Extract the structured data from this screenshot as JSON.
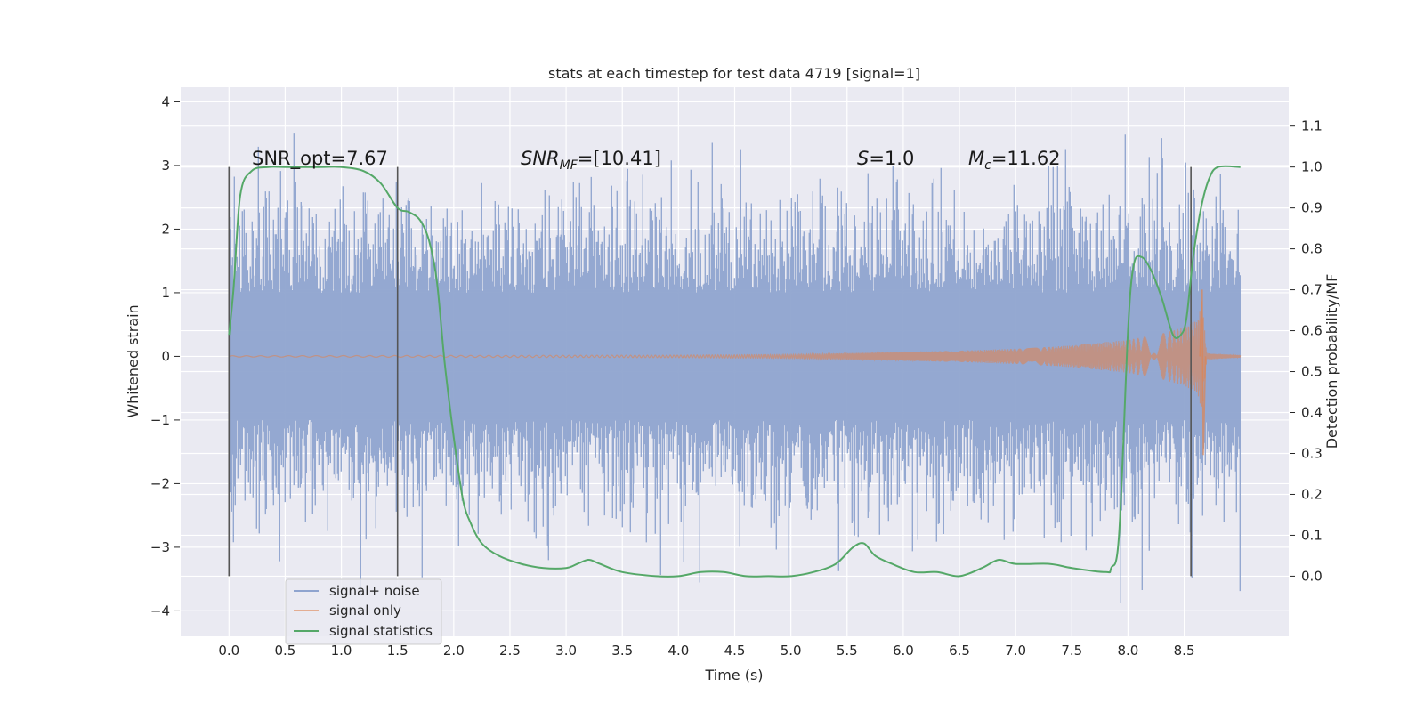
{
  "chart_data": {
    "type": "line",
    "title": "stats at each timestep for test data 4719 [signal=1]",
    "xlabel": "Time (s)",
    "ylabel": "Whitened strain",
    "y2label": "Detection probability/MF",
    "xlim": [
      -0.43,
      9.43
    ],
    "ylim": [
      -4.4,
      4.23
    ],
    "y2lim": [
      -0.147,
      1.195
    ],
    "xticks": [
      "0.0",
      "0.5",
      "1.0",
      "1.5",
      "2.0",
      "2.5",
      "3.0",
      "3.5",
      "4.0",
      "4.5",
      "5.0",
      "5.5",
      "6.0",
      "6.5",
      "7.0",
      "7.5",
      "8.0",
      "8.5"
    ],
    "yticks": [
      "4",
      "3",
      "2",
      "1",
      "0",
      "−1",
      "−2",
      "−3",
      "−4"
    ],
    "y2ticks": [
      "1.1",
      "1.0",
      "0.9",
      "0.8",
      "0.7",
      "0.6",
      "0.5",
      "0.4",
      "0.3",
      "0.2",
      "0.1",
      "0.0"
    ],
    "grid": true,
    "legend_position": "lower-left",
    "annotations": {
      "snr_opt": "SNR_opt=7.67",
      "snr_mf_main": "SNR",
      "snr_mf_sub": "MF",
      "snr_mf_rest": "=[10.41]",
      "s_main": "S",
      "s_rest": "=1.0",
      "mc_main": "M",
      "mc_sub": "c",
      "mc_rest": "=11.62"
    },
    "vertical_markers_x": [
      0.0,
      1.5,
      8.56
    ],
    "series": [
      {
        "name": "signal+ noise",
        "color": "#8fa4cf",
        "description_range": [
          -4.0,
          3.85
        ],
        "x_range": [
          0.0,
          9.0
        ]
      },
      {
        "name": "signal only",
        "color": "#dd8452",
        "envelope": {
          "x": [
            0.0,
            4.0,
            5.0,
            5.5,
            6.0,
            6.5,
            7.0,
            7.5,
            8.0,
            8.3,
            8.5,
            8.62,
            8.66,
            8.7,
            9.0
          ],
          "amp": [
            0.01,
            0.02,
            0.03,
            0.05,
            0.07,
            0.09,
            0.12,
            0.17,
            0.26,
            0.36,
            0.46,
            0.58,
            0.9,
            0.05,
            0.02
          ]
        }
      },
      {
        "name": "signal statistics",
        "color": "#55a868",
        "x": [
          0.0,
          0.04,
          0.1,
          0.2,
          0.35,
          0.5,
          0.8,
          1.0,
          1.2,
          1.35,
          1.5,
          1.6,
          1.7,
          1.78,
          1.85,
          1.92,
          2.0,
          2.08,
          2.15,
          2.25,
          2.4,
          2.6,
          2.8,
          3.0,
          3.1,
          3.2,
          3.3,
          3.5,
          3.8,
          4.0,
          4.2,
          4.4,
          4.6,
          4.8,
          5.0,
          5.2,
          5.4,
          5.55,
          5.65,
          5.75,
          5.9,
          6.1,
          6.3,
          6.5,
          6.7,
          6.85,
          7.0,
          7.3,
          7.5,
          7.8,
          7.85,
          7.92,
          8.0,
          8.05,
          8.12,
          8.2,
          8.3,
          8.4,
          8.47,
          8.52,
          8.58,
          8.65,
          8.72,
          8.8,
          9.0
        ],
        "y": [
          0.59,
          0.7,
          0.93,
          0.99,
          1.0,
          1.0,
          1.0,
          1.0,
          0.99,
          0.96,
          0.9,
          0.89,
          0.87,
          0.82,
          0.72,
          0.52,
          0.34,
          0.19,
          0.13,
          0.08,
          0.05,
          0.03,
          0.02,
          0.02,
          0.03,
          0.04,
          0.03,
          0.01,
          0.0,
          0.0,
          0.01,
          0.01,
          0.0,
          0.0,
          0.0,
          0.01,
          0.03,
          0.07,
          0.08,
          0.05,
          0.03,
          0.01,
          0.01,
          0.0,
          0.02,
          0.04,
          0.03,
          0.03,
          0.02,
          0.01,
          0.02,
          0.1,
          0.6,
          0.76,
          0.78,
          0.75,
          0.68,
          0.59,
          0.59,
          0.63,
          0.78,
          0.9,
          0.97,
          1.0,
          1.0
        ]
      }
    ]
  }
}
